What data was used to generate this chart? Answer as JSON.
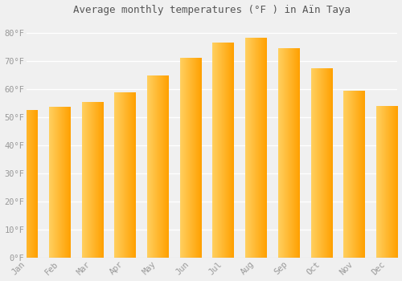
{
  "title": "Average monthly temperatures (°F ) in Aïn Taya",
  "months": [
    "Jan",
    "Feb",
    "Mar",
    "Apr",
    "May",
    "Jun",
    "Jul",
    "Aug",
    "Sep",
    "Oct",
    "Nov",
    "Dec"
  ],
  "values": [
    52.5,
    53.6,
    55.2,
    58.6,
    64.6,
    70.9,
    76.3,
    78.1,
    74.3,
    67.3,
    59.4,
    53.8
  ],
  "bar_color_left": "#FFD060",
  "bar_color_right": "#FFA000",
  "background_color": "#f0f0f0",
  "grid_color": "#ffffff",
  "tick_color": "#999999",
  "title_color": "#555555",
  "ylabel_ticks": [
    "0°F",
    "10°F",
    "20°F",
    "30°F",
    "40°F",
    "50°F",
    "60°F",
    "70°F",
    "80°F"
  ],
  "ylim": [
    0,
    85
  ],
  "yticks": [
    0,
    10,
    20,
    30,
    40,
    50,
    60,
    70,
    80
  ],
  "title_fontsize": 9,
  "tick_fontsize": 7.5
}
